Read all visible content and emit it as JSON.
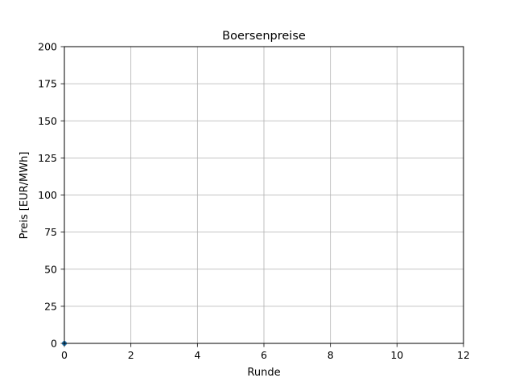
{
  "chart_data": {
    "type": "scatter",
    "title": "Boersenpreise",
    "xlabel": "Runde",
    "ylabel": "Preis [EUR/MWh]",
    "xlim": [
      0,
      12
    ],
    "ylim": [
      0,
      200
    ],
    "xticks": [
      0,
      2,
      4,
      6,
      8,
      10,
      12
    ],
    "yticks": [
      0,
      25,
      50,
      75,
      100,
      125,
      150,
      175,
      200
    ],
    "grid": true,
    "series": [
      {
        "color": "#1f77b4",
        "points": [
          {
            "x": 0,
            "y": 0
          }
        ]
      }
    ]
  }
}
